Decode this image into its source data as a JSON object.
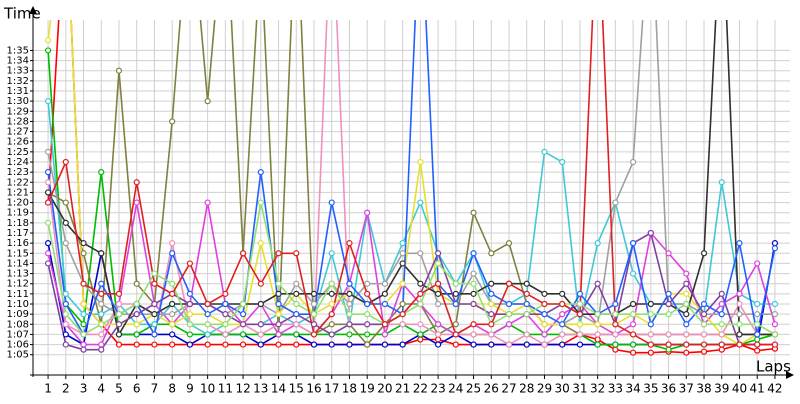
{
  "chart_data": {
    "type": "line",
    "y_label": "Time",
    "x_label": "Laps",
    "xlim": [
      0.15,
      42.85
    ],
    "ylim": [
      63,
      98
    ],
    "grid": true,
    "xticks": [
      1,
      2,
      3,
      4,
      5,
      6,
      7,
      8,
      9,
      10,
      11,
      12,
      13,
      14,
      15,
      16,
      17,
      18,
      19,
      20,
      21,
      22,
      23,
      24,
      25,
      26,
      27,
      28,
      29,
      30,
      31,
      32,
      33,
      34,
      35,
      36,
      37,
      38,
      39,
      40,
      41,
      42
    ],
    "yticks": [
      {
        "value": 65,
        "label": "1:05"
      },
      {
        "value": 66,
        "label": "1:06"
      },
      {
        "value": 67,
        "label": "1:07"
      },
      {
        "value": 68,
        "label": "1:08"
      },
      {
        "value": 69,
        "label": "1:09"
      },
      {
        "value": 70,
        "label": "1:10"
      },
      {
        "value": 71,
        "label": "1:11"
      },
      {
        "value": 72,
        "label": "1:12"
      },
      {
        "value": 73,
        "label": "1:13"
      },
      {
        "value": 74,
        "label": "1:14"
      },
      {
        "value": 75,
        "label": "1:15"
      },
      {
        "value": 76,
        "label": "1:16"
      },
      {
        "value": 77,
        "label": "1:17"
      },
      {
        "value": 78,
        "label": "1:18"
      },
      {
        "value": 79,
        "label": "1:19"
      },
      {
        "value": 80,
        "label": "1:20"
      },
      {
        "value": 81,
        "label": "1:21"
      },
      {
        "value": 82,
        "label": "1:22"
      },
      {
        "value": 83,
        "label": "1:23"
      },
      {
        "value": 84,
        "label": "1:24"
      },
      {
        "value": 85,
        "label": "1:25"
      },
      {
        "value": 86,
        "label": "1:26"
      },
      {
        "value": 87,
        "label": "1:27"
      },
      {
        "value": 88,
        "label": "1:28"
      },
      {
        "value": 89,
        "label": "1:29"
      },
      {
        "value": 90,
        "label": "1:30"
      },
      {
        "value": 91,
        "label": "1:31"
      },
      {
        "value": 92,
        "label": "1:32"
      },
      {
        "value": 93,
        "label": "1:33"
      },
      {
        "value": 94,
        "label": "1:34"
      },
      {
        "value": 95,
        "label": "1:35"
      }
    ],
    "x": [
      1,
      2,
      3,
      4,
      5,
      6,
      7,
      8,
      9,
      10,
      11,
      12,
      13,
      14,
      15,
      16,
      17,
      18,
      19,
      20,
      21,
      22,
      23,
      24,
      25,
      26,
      27,
      28,
      29,
      30,
      31,
      32,
      33,
      34,
      35,
      36,
      37,
      38,
      39,
      40,
      41,
      42
    ],
    "series": [
      {
        "color": "#ff0000",
        "values": [
          80,
          110,
          70,
          68,
          66,
          66,
          66,
          66,
          66,
          66,
          66,
          66,
          66,
          66,
          66,
          66,
          66,
          66,
          66,
          66,
          66,
          66.5,
          66.5,
          66,
          66,
          66,
          66,
          66,
          66,
          66,
          67,
          66.5,
          65.5,
          65.2,
          65.2,
          65.3,
          65.2,
          65.3,
          65.5,
          66,
          65.4,
          65.6
        ]
      },
      {
        "color": "#0000cc",
        "values": [
          76,
          67,
          66,
          75,
          67,
          67,
          67,
          67,
          66,
          67,
          67,
          67,
          66,
          67,
          67,
          66,
          66,
          66,
          66,
          66,
          66,
          67,
          66,
          67,
          66,
          66,
          66,
          66,
          66,
          66,
          66,
          66,
          66,
          66,
          66,
          66,
          66,
          66,
          66,
          66,
          66,
          76
        ]
      },
      {
        "color": "#00bb00",
        "values": [
          95,
          70,
          68,
          83,
          67,
          67,
          68,
          68,
          67,
          67,
          67,
          67,
          67,
          67,
          67,
          67,
          67,
          67,
          67,
          67,
          68,
          67,
          68,
          67,
          67,
          67,
          68,
          67,
          67,
          67,
          67,
          66,
          66,
          66,
          66,
          65.5,
          66,
          66,
          66,
          66,
          66.5,
          67
        ]
      },
      {
        "color": "#808040",
        "values": [
          81,
          80,
          75,
          68,
          93,
          72,
          70,
          88,
          110,
          90,
          110,
          75,
          105,
          67,
          110,
          67,
          68,
          68,
          66,
          68,
          70,
          70,
          67,
          68,
          79,
          75,
          76,
          70,
          68,
          68,
          67,
          67,
          67,
          67,
          67,
          67,
          67,
          67,
          67,
          67,
          67,
          67
        ]
      },
      {
        "color": "#40c8d8",
        "values": [
          90,
          71,
          69,
          69,
          70,
          68,
          68,
          70,
          68,
          67,
          68,
          68,
          68,
          69,
          68,
          69,
          75,
          68,
          79,
          72,
          76,
          80,
          75,
          72,
          75,
          70,
          70,
          71,
          85,
          84,
          68,
          76,
          80,
          73,
          70,
          70,
          70,
          69,
          82,
          71,
          70,
          70
        ]
      },
      {
        "color": "#e040e0",
        "values": [
          75,
          68,
          66,
          66,
          70,
          80,
          70,
          68,
          70,
          80,
          70,
          68,
          70,
          67,
          68,
          67,
          69,
          72,
          79,
          67,
          72,
          70,
          68,
          67,
          68,
          67,
          68,
          69,
          67,
          69,
          70,
          68,
          67,
          68,
          77,
          75,
          73,
          68,
          70,
          71,
          74,
          68
        ]
      },
      {
        "color": "#a0a0a0",
        "values": [
          85,
          76,
          72,
          70,
          69,
          69,
          69,
          69,
          70,
          70,
          69,
          70,
          70,
          69,
          72,
          70,
          72,
          70,
          72,
          72,
          75,
          75,
          70,
          70,
          73,
          70,
          70,
          70,
          68,
          68,
          69,
          68,
          80,
          84,
          110,
          70,
          70,
          69,
          69,
          69,
          69,
          69
        ]
      },
      {
        "color": "#e8e030",
        "values": [
          96,
          110,
          70,
          68,
          68,
          68,
          69,
          68,
          69,
          69,
          68,
          68,
          76,
          69,
          71,
          69,
          70,
          71,
          70,
          70,
          72,
          84,
          71,
          70,
          70,
          70,
          69,
          70,
          68,
          68,
          68,
          68,
          68,
          69,
          68,
          71,
          71,
          69,
          67,
          66,
          67,
          67
        ]
      },
      {
        "color": "#f090c0",
        "values": [
          82,
          68,
          67,
          67,
          70,
          70,
          67,
          76,
          68,
          68,
          67,
          68,
          67,
          68,
          68,
          67,
          110,
          68,
          68,
          68,
          68,
          68,
          67,
          67,
          67,
          67,
          66,
          67,
          66,
          67,
          67,
          67,
          67,
          67,
          67,
          67,
          67,
          67,
          67,
          70,
          67,
          67
        ]
      },
      {
        "color": "#303030",
        "values": [
          81,
          78,
          76,
          75,
          67,
          70,
          69,
          70,
          70,
          70,
          70,
          70,
          70,
          71,
          71,
          71,
          71,
          71,
          70,
          71,
          74,
          72,
          71,
          71,
          71,
          72,
          72,
          72,
          71,
          71,
          69,
          69,
          69,
          70,
          70,
          70,
          69,
          75,
          110,
          67,
          67,
          67
        ]
      },
      {
        "color": "#8040a0",
        "values": [
          74,
          66,
          65.5,
          65.5,
          68,
          69,
          70,
          71,
          70,
          70,
          69,
          68,
          68,
          68,
          69,
          68,
          67,
          68,
          68,
          68,
          69,
          71,
          75,
          70,
          70,
          69,
          69,
          69,
          69,
          70,
          69,
          72,
          68,
          76,
          77,
          70,
          72,
          69,
          71,
          66,
          66,
          66
        ]
      },
      {
        "color": "#2060ff",
        "values": [
          83,
          70,
          67,
          72,
          69,
          70,
          67,
          75,
          71,
          69,
          70,
          69,
          83,
          70,
          69,
          69,
          80,
          72,
          70,
          70,
          69,
          110,
          72,
          70,
          75,
          71,
          70,
          70,
          69,
          68,
          71,
          69,
          70,
          76,
          68,
          71,
          68,
          70,
          69,
          76,
          67,
          75.5
        ]
      },
      {
        "color": "#90e070",
        "values": [
          78,
          69,
          67,
          68,
          69,
          70,
          73,
          72,
          68,
          68,
          68,
          70,
          80,
          72,
          70,
          69,
          72,
          69,
          69,
          68,
          69,
          70,
          74,
          72,
          72,
          68,
          69,
          69,
          70,
          70,
          70,
          69,
          69,
          69,
          69,
          69,
          70,
          68,
          68,
          68,
          68,
          67
        ]
      },
      {
        "color": "#e02020",
        "values": [
          80,
          84,
          72,
          71,
          71,
          82,
          72,
          71,
          74,
          70,
          71,
          75,
          72,
          75,
          75,
          67,
          69,
          76,
          71,
          68,
          69,
          71,
          72,
          67,
          68,
          68,
          72,
          71,
          70,
          70,
          69,
          110,
          68,
          67,
          66,
          66,
          66,
          66,
          66,
          66,
          66,
          66
        ]
      }
    ]
  }
}
